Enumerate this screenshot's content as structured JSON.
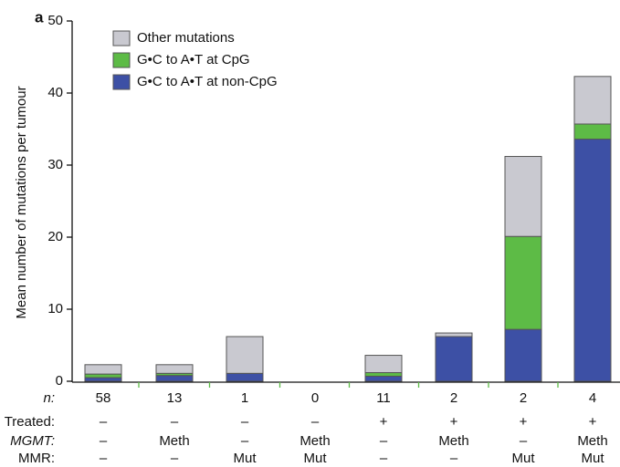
{
  "panel_label": "a",
  "chart_data": {
    "type": "stacked_bar",
    "y_label": "Mean number of mutations per tumour",
    "ylim": [
      0,
      50
    ],
    "yticks": [
      0,
      10,
      20,
      30,
      40,
      50
    ],
    "series": [
      {
        "name": "G•C to A•T at non-CpG",
        "color": "#3d50a5",
        "values": [
          0.5,
          0.8,
          1.1,
          0,
          0.7,
          6.2,
          7.2,
          33.6
        ]
      },
      {
        "name": "G•C to A•T at CpG",
        "color": "#5dbb46",
        "values": [
          0.5,
          0.3,
          0,
          0,
          0.5,
          0,
          12.9,
          2.1
        ]
      },
      {
        "name": "Other mutations",
        "color": "#c9c9d0",
        "values": [
          1.3,
          1.2,
          5.1,
          0,
          2.4,
          0.5,
          11.1,
          6.6
        ]
      }
    ],
    "table": {
      "row_labels": [
        "n:",
        "Treated:",
        "MGMT:",
        "MMR:"
      ],
      "rows": [
        [
          58,
          13,
          1,
          0,
          11,
          2,
          2,
          4
        ],
        [
          "–",
          "–",
          "–",
          "–",
          "+",
          "+",
          "+",
          "+"
        ],
        [
          "–",
          "Meth",
          "–",
          "Meth",
          "–",
          "Meth",
          "–",
          "Meth"
        ],
        [
          "–",
          "–",
          "Mut",
          "Mut",
          "–",
          "–",
          "Mut",
          "Mut"
        ]
      ]
    }
  }
}
